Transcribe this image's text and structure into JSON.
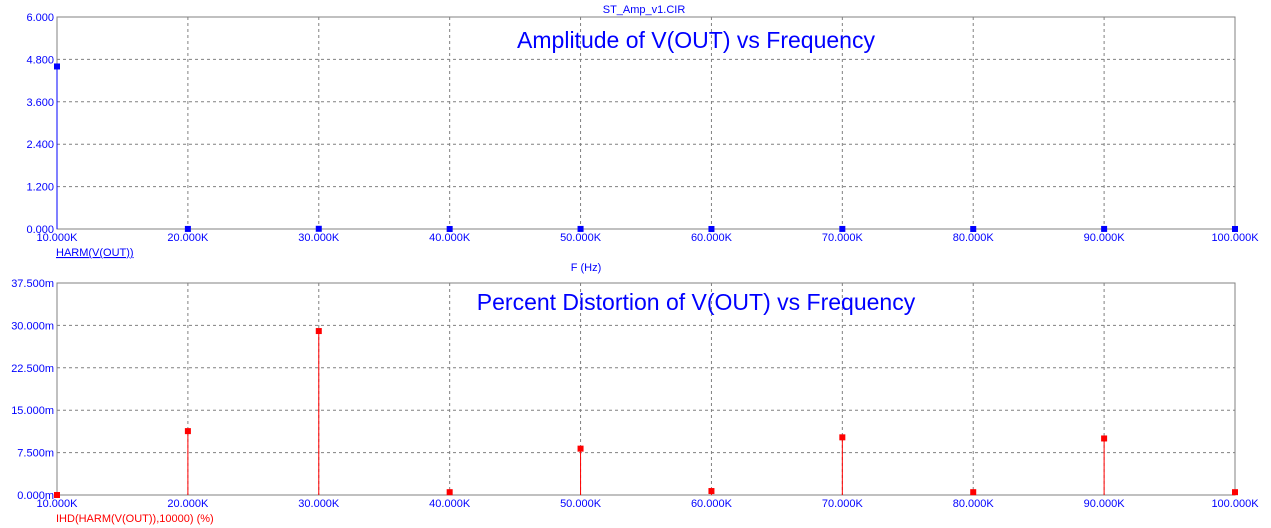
{
  "window": {
    "file_title": "ST_Amp_v1.CIR"
  },
  "x_axis_label": "F (Hz)",
  "colors": {
    "grid": "#808080",
    "axis_text": "#0000ff",
    "series1": "#0000ff",
    "series2": "#ff0000"
  },
  "chart_data": [
    {
      "type": "scatter",
      "style": "stem",
      "title": "Amplitude of V(OUT) vs Frequency",
      "xlabel": "F (Hz)",
      "ylabel": "",
      "xlim": [
        10000,
        100000
      ],
      "ylim": [
        0,
        6
      ],
      "x_ticks": [
        "10.000K",
        "20.000K",
        "30.000K",
        "40.000K",
        "50.000K",
        "60.000K",
        "70.000K",
        "80.000K",
        "90.000K",
        "100.000K"
      ],
      "y_ticks": [
        "0.000",
        "1.200",
        "2.400",
        "3.600",
        "4.800",
        "6.000"
      ],
      "grid": true,
      "series": [
        {
          "name": "HARM(V(OUT))",
          "color": "#0000ff",
          "x": [
            10000,
            20000,
            30000,
            40000,
            50000,
            60000,
            70000,
            80000,
            90000,
            100000
          ],
          "y": [
            4.6,
            0.002,
            0.006,
            0.0003,
            0.002,
            0.0003,
            0.002,
            0.0003,
            0.002,
            0.0003
          ]
        }
      ]
    },
    {
      "type": "scatter",
      "style": "stem",
      "title": "Percent Distortion of V(OUT) vs Frequency",
      "xlabel": "",
      "ylabel": "",
      "xlim": [
        10000,
        100000
      ],
      "ylim": [
        0,
        37.5
      ],
      "x_ticks": [
        "10.000K",
        "20.000K",
        "30.000K",
        "40.000K",
        "50.000K",
        "60.000K",
        "70.000K",
        "80.000K",
        "90.000K",
        "100.000K"
      ],
      "y_ticks": [
        "0.000m",
        "7.500m",
        "15.000m",
        "22.500m",
        "30.000m",
        "37.500m"
      ],
      "grid": true,
      "series": [
        {
          "name": "IHD(HARM(V(OUT)),10000) (%)",
          "color": "#ff0000",
          "x": [
            10000,
            20000,
            30000,
            40000,
            50000,
            60000,
            70000,
            80000,
            90000,
            100000
          ],
          "y": [
            0,
            11.3,
            29.0,
            0.5,
            8.2,
            0.7,
            10.2,
            0.5,
            10.0,
            0.5
          ]
        }
      ]
    }
  ]
}
